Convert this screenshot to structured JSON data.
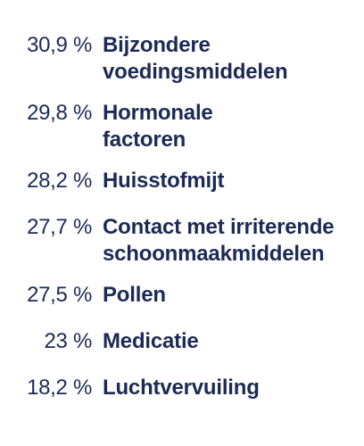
{
  "items": [
    {
      "percent": "30,9 %",
      "label_lines": [
        "Bijzondere",
        "voedingsmiddelen"
      ]
    },
    {
      "percent": "29,8 %",
      "label_lines": [
        "Hormonale",
        "factoren"
      ]
    },
    {
      "percent": "28,2 %",
      "label_lines": [
        "Huisstofmijt"
      ]
    },
    {
      "percent": "27,7 %",
      "label_lines": [
        "Contact met irriterende",
        "schoonmaakmiddelen"
      ]
    },
    {
      "percent": "27,5 %",
      "label_lines": [
        "Pollen"
      ]
    },
    {
      "percent": "23 %",
      "label_lines": [
        "Medicatie"
      ]
    },
    {
      "percent": "18,2 %",
      "label_lines": [
        "Luchtvervuiling"
      ]
    }
  ]
}
